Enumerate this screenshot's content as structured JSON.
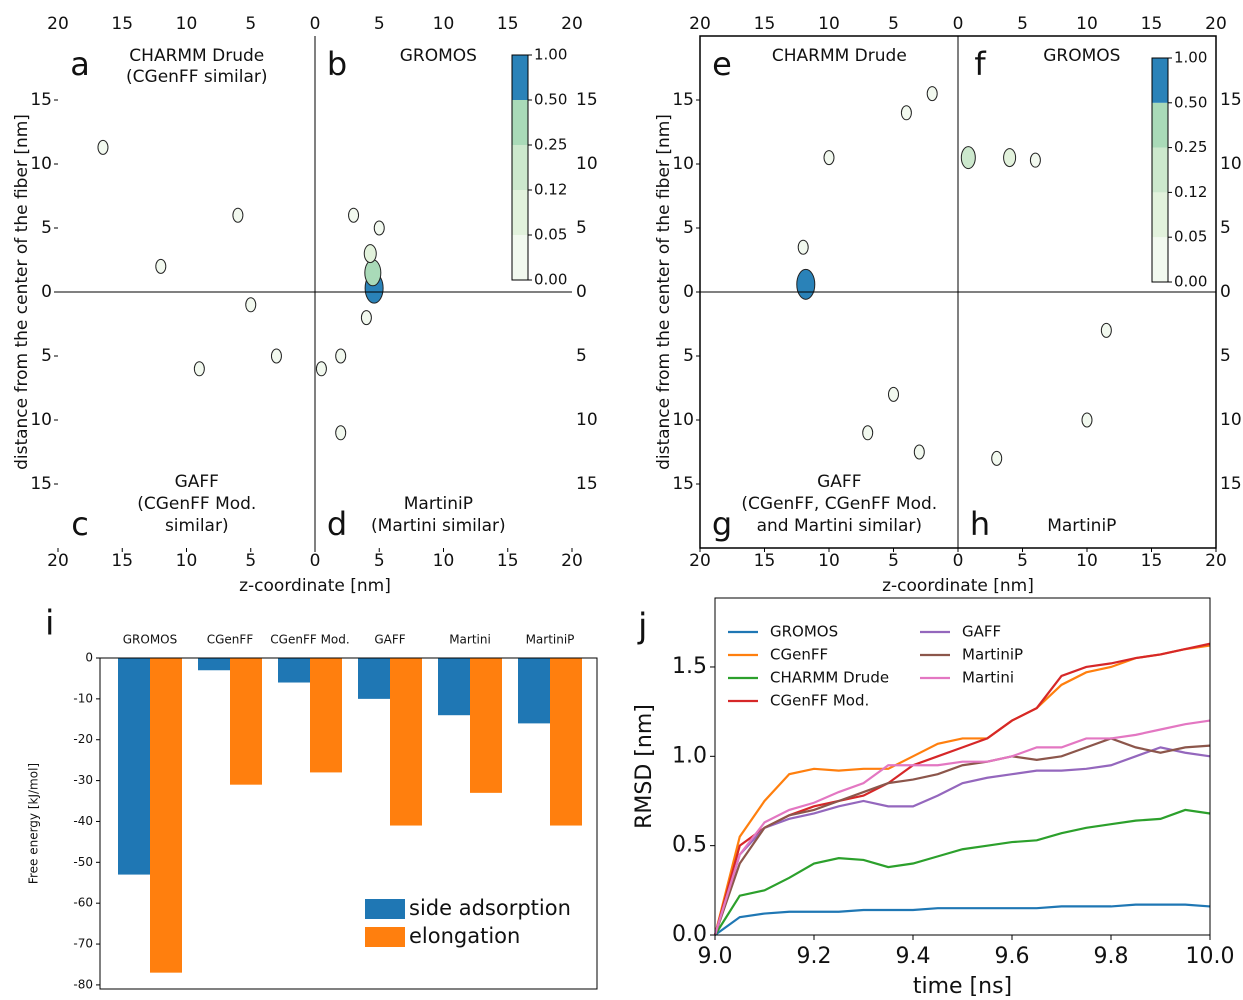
{
  "chart_data": [
    {
      "type": "contour",
      "xlabel": "z-coordinate [nm]",
      "ylabel": "distance from the center of the fiber [nm]",
      "frame": false,
      "xlim": [
        -20,
        20
      ],
      "ylim": [
        -20,
        20
      ],
      "xticks": [
        {
          "value": -20,
          "label": "20"
        },
        {
          "value": -15,
          "label": "15"
        },
        {
          "value": -10,
          "label": "10"
        },
        {
          "value": -5,
          "label": "5"
        },
        0,
        5,
        10,
        15,
        20
      ],
      "yticks": [
        {
          "value": -15,
          "label": "15"
        },
        {
          "value": -10,
          "label": "10"
        },
        {
          "value": -5,
          "label": "5"
        },
        0,
        5,
        10,
        15
      ],
      "quadrants": [
        {
          "letter": "a",
          "lines": [
            "CHARMM Drude",
            "(CGenFF similar)"
          ]
        },
        {
          "letter": "b",
          "lines": [
            "GROMOS"
          ]
        },
        {
          "letter": "c",
          "lines": [
            "GAFF",
            "(CGenFF Mod.",
            "similar)"
          ]
        },
        {
          "letter": "d",
          "lines": [
            "MartiniP",
            "(Martini similar)"
          ]
        }
      ],
      "colorbar": {
        "levels": [
          {
            "value": 0,
            "label": "0.00"
          },
          0.05,
          0.12,
          0.25,
          {
            "value": 0.5,
            "label": "0.50"
          },
          {
            "value": 1,
            "label": "1.00"
          }
        ],
        "colors": [
          "#f2f9ef",
          "#e2f2dc",
          "#cce8cd",
          "#a9dab8",
          "#2a82b8"
        ]
      },
      "regions": [
        {
          "x": 4.6,
          "y": 0.3,
          "level": 1.0
        },
        {
          "x": 4.5,
          "y": 1.5,
          "level": 0.5
        },
        {
          "x": 4.3,
          "y": 3,
          "level": 0.12
        },
        {
          "x": 3,
          "y": 6,
          "level": 0.05
        },
        {
          "x": 5,
          "y": 5,
          "level": 0.05
        },
        {
          "x": 4,
          "y": -2,
          "level": 0.05
        },
        {
          "x": 2,
          "y": -5,
          "level": 0.05
        },
        {
          "x": 0.5,
          "y": -6,
          "level": 0.05
        },
        {
          "x": -3,
          "y": -5,
          "level": 0.05
        },
        {
          "x": -5,
          "y": -1,
          "level": 0.05
        },
        {
          "x": -12,
          "y": 2,
          "level": 0.05
        },
        {
          "x": -9,
          "y": -6,
          "level": 0.05
        },
        {
          "x": -6,
          "y": 6,
          "level": 0.05
        },
        {
          "x": 2,
          "y": -11,
          "level": 0.05
        },
        {
          "x": -16.5,
          "y": 11.3,
          "level": 0.05
        }
      ]
    },
    {
      "type": "contour",
      "xlabel": "z-coordinate [nm]",
      "ylabel": "distance from the center of the fiber [nm]",
      "frame": true,
      "xlim": [
        -20,
        20
      ],
      "ylim": [
        -20,
        20
      ],
      "xticks": [
        {
          "value": -20,
          "label": "20"
        },
        {
          "value": -15,
          "label": "15"
        },
        {
          "value": -10,
          "label": "10"
        },
        {
          "value": -5,
          "label": "5"
        },
        0,
        5,
        10,
        15,
        20
      ],
      "yticks": [
        {
          "value": -15,
          "label": "15"
        },
        {
          "value": -10,
          "label": "10"
        },
        {
          "value": -5,
          "label": "5"
        },
        0,
        5,
        10,
        15
      ],
      "quadrants": [
        {
          "letter": "e",
          "lines": [
            "CHARMM Drude"
          ]
        },
        {
          "letter": "f",
          "lines": [
            "GROMOS"
          ]
        },
        {
          "letter": "g",
          "lines": [
            "GAFF",
            "(CGenFF, CGenFF Mod.",
            "and Martini similar)"
          ]
        },
        {
          "letter": "h",
          "lines": [
            "MartiniP"
          ]
        }
      ],
      "colorbar": {
        "levels": [
          {
            "value": 0,
            "label": "0.00"
          },
          0.05,
          0.12,
          0.25,
          {
            "value": 0.5,
            "label": "0.50"
          },
          {
            "value": 1,
            "label": "1.00"
          }
        ],
        "colors": [
          "#f2f9ef",
          "#e2f2dc",
          "#cce8cd",
          "#a9dab8",
          "#2a82b8"
        ]
      },
      "regions": [
        {
          "x": -11.8,
          "y": 0.6,
          "level": 1.0
        },
        {
          "x": -12,
          "y": 3.5,
          "level": 0.05
        },
        {
          "x": 0.8,
          "y": 10.5,
          "level": 0.25
        },
        {
          "x": 4,
          "y": 10.5,
          "level": 0.12
        },
        {
          "x": 6,
          "y": 10.3,
          "level": 0.05
        },
        {
          "x": -10,
          "y": 10.5,
          "level": 0.05
        },
        {
          "x": -4,
          "y": 14,
          "level": 0.05
        },
        {
          "x": -2,
          "y": 15.5,
          "level": 0.05
        },
        {
          "x": 11.5,
          "y": -3,
          "level": 0.05
        },
        {
          "x": -7,
          "y": -11,
          "level": 0.05
        },
        {
          "x": -3,
          "y": -12.5,
          "level": 0.05
        },
        {
          "x": 3,
          "y": -13,
          "level": 0.05
        },
        {
          "x": 10,
          "y": -10,
          "level": 0.05
        },
        {
          "x": -5,
          "y": -8,
          "level": 0.05
        }
      ]
    },
    {
      "type": "bar",
      "panel_label": "i",
      "ylabel": "Free energy [kJ/mol]",
      "categories": [
        "GROMOS",
        "CGenFF",
        "CGenFF Mod.",
        "GAFF",
        "Martini",
        "MartiniP"
      ],
      "series": [
        {
          "name": "side adsorption",
          "color": "#1f77b4",
          "values": [
            -53,
            -3,
            -6,
            -10,
            -14,
            -16
          ]
        },
        {
          "name": "elongation",
          "color": "#ff7f0e",
          "values": [
            -77,
            -31,
            -28,
            -41,
            -33,
            -41
          ]
        }
      ],
      "ylim": [
        -81,
        0
      ],
      "yticks": [
        0,
        -10,
        -20,
        -30,
        -40,
        -50,
        -60,
        -70,
        -80
      ],
      "legend": "lower right"
    },
    {
      "type": "line",
      "panel_label": "j",
      "xlabel": "time [ns]",
      "ylabel": "RMSD [nm]",
      "x": [
        9,
        9.05,
        9.1,
        9.15,
        9.2,
        9.25,
        9.3,
        9.35,
        9.4,
        9.45,
        9.5,
        9.55,
        9.6,
        9.65,
        9.7,
        9.75,
        9.8,
        9.85,
        9.9,
        9.95,
        10
      ],
      "series": [
        {
          "name": "GROMOS",
          "color": "#1f77b4",
          "values": [
            0,
            0.1,
            0.12,
            0.13,
            0.13,
            0.13,
            0.14,
            0.14,
            0.14,
            0.15,
            0.15,
            0.15,
            0.15,
            0.15,
            0.16,
            0.16,
            0.16,
            0.17,
            0.17,
            0.17,
            0.16
          ]
        },
        {
          "name": "CGenFF",
          "color": "#ff7f0e",
          "values": [
            0,
            0.55,
            0.75,
            0.9,
            0.93,
            0.92,
            0.93,
            0.93,
            1.0,
            1.07,
            1.1,
            1.1,
            1.2,
            1.27,
            1.4,
            1.47,
            1.5,
            1.55,
            1.57,
            1.6,
            1.62
          ]
        },
        {
          "name": "CHARMM Drude",
          "color": "#2ca02c",
          "values": [
            0,
            0.22,
            0.25,
            0.32,
            0.4,
            0.43,
            0.42,
            0.38,
            0.4,
            0.44,
            0.48,
            0.5,
            0.52,
            0.53,
            0.57,
            0.6,
            0.62,
            0.64,
            0.65,
            0.7,
            0.68
          ]
        },
        {
          "name": "CGenFF Mod.",
          "color": "#d62728",
          "values": [
            0,
            0.5,
            0.6,
            0.67,
            0.72,
            0.75,
            0.78,
            0.85,
            0.95,
            1.0,
            1.05,
            1.1,
            1.2,
            1.27,
            1.45,
            1.5,
            1.52,
            1.55,
            1.57,
            1.6,
            1.63
          ]
        },
        {
          "name": "GAFF",
          "color": "#9467bd",
          "values": [
            0,
            0.45,
            0.6,
            0.65,
            0.68,
            0.72,
            0.75,
            0.72,
            0.72,
            0.78,
            0.85,
            0.88,
            0.9,
            0.92,
            0.92,
            0.93,
            0.95,
            1.0,
            1.05,
            1.02,
            1.0
          ]
        },
        {
          "name": "MartiniP",
          "color": "#8c564b",
          "values": [
            0,
            0.4,
            0.6,
            0.67,
            0.7,
            0.75,
            0.8,
            0.85,
            0.87,
            0.9,
            0.95,
            0.97,
            1.0,
            0.98,
            1.0,
            1.05,
            1.1,
            1.05,
            1.02,
            1.05,
            1.06
          ]
        },
        {
          "name": "Martini",
          "color": "#e377c2",
          "values": [
            0,
            0.45,
            0.63,
            0.7,
            0.74,
            0.8,
            0.85,
            0.95,
            0.95,
            0.95,
            0.97,
            0.97,
            1.0,
            1.05,
            1.05,
            1.1,
            1.1,
            1.12,
            1.15,
            1.18,
            1.2
          ]
        }
      ],
      "xlim": [
        9,
        10
      ],
      "xticks": [
        {
          "value": 9,
          "label": "9.0"
        },
        9.2,
        9.4,
        9.6,
        9.8,
        {
          "value": 10,
          "label": "10.0"
        }
      ],
      "ylim": [
        0,
        1.886
      ],
      "yticks": [
        {
          "value": 0,
          "label": "0.0"
        },
        0.5,
        {
          "value": 1,
          "label": "1.0"
        },
        1.5
      ],
      "legend": "upper left"
    }
  ]
}
